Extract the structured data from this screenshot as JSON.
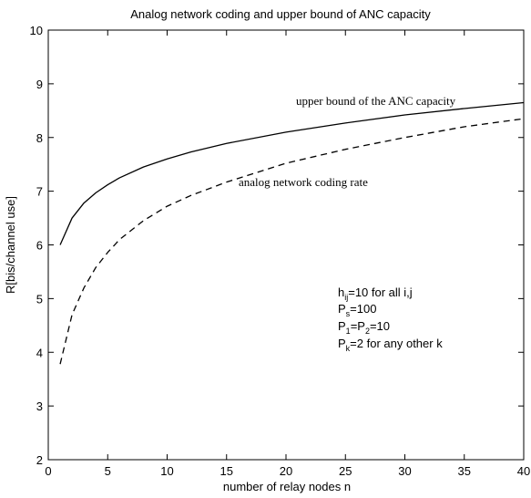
{
  "chart_data": {
    "type": "line",
    "title": "Analog network coding and upper bound of ANC capacity",
    "xlabel": "number of relay nodes n",
    "ylabel": "R[bis/channel use]",
    "xlim": [
      0,
      40
    ],
    "ylim": [
      2,
      10
    ],
    "xticks": [
      0,
      5,
      10,
      15,
      20,
      25,
      30,
      35,
      40
    ],
    "yticks": [
      2,
      3,
      4,
      5,
      6,
      7,
      8,
      9,
      10
    ],
    "grid": false,
    "series": [
      {
        "label": "upper bound of the ANC capacity",
        "style": "solid",
        "x": [
          1,
          2,
          3,
          4,
          5,
          6,
          8,
          10,
          12,
          15,
          20,
          25,
          30,
          35,
          40
        ],
        "y": [
          6.0,
          6.5,
          6.78,
          6.97,
          7.12,
          7.25,
          7.45,
          7.6,
          7.73,
          7.89,
          8.1,
          8.27,
          8.42,
          8.54,
          8.65
        ]
      },
      {
        "label": "analog network coding rate",
        "style": "dashed",
        "x": [
          1,
          2,
          3,
          4,
          5,
          6,
          8,
          10,
          12,
          15,
          20,
          25,
          30,
          35,
          40
        ],
        "y": [
          3.78,
          4.7,
          5.2,
          5.58,
          5.86,
          6.1,
          6.45,
          6.72,
          6.92,
          7.17,
          7.52,
          7.78,
          8.0,
          8.2,
          8.35
        ]
      }
    ],
    "annotations": {
      "h": "h",
      "h_sub": "ij",
      "h_rest": "=10 for all i,j",
      "ps": "P",
      "ps_sub": "s",
      "ps_rest": "=100",
      "p1": "P",
      "p1_sub": "1",
      "p1_mid": "=P",
      "p2_sub": "2",
      "p12_rest": "=10",
      "pk": "P",
      "pk_sub": "k",
      "pk_rest": "=2 for any other k"
    }
  }
}
